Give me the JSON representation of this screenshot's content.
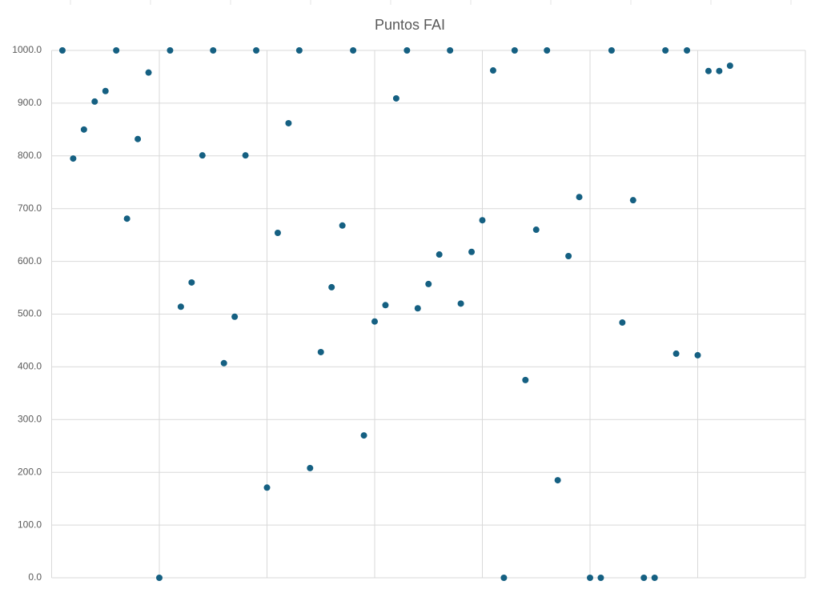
{
  "chart_data": {
    "type": "scatter",
    "title": "Puntos FAI",
    "x": [
      1,
      2,
      3,
      4,
      5,
      6,
      7,
      8,
      9,
      10,
      11,
      12,
      13,
      14,
      15,
      16,
      17,
      18,
      19,
      20,
      21,
      22,
      23,
      24,
      25,
      26,
      27,
      28,
      29,
      30,
      31,
      32,
      33,
      34,
      35,
      36,
      37,
      38,
      39,
      40,
      41,
      42,
      43,
      44,
      45,
      46,
      47,
      48,
      49,
      50,
      51,
      52,
      53,
      54,
      55,
      56,
      57,
      58,
      59,
      60,
      61,
      62,
      63
    ],
    "values": [
      1000,
      795,
      850,
      903,
      923,
      1000,
      681,
      832,
      958,
      0,
      1000,
      514,
      560,
      801,
      1000,
      407,
      495,
      801,
      1000,
      171,
      654,
      862,
      1000,
      208,
      428,
      551,
      668,
      1000,
      270,
      486,
      517,
      909,
      1000,
      511,
      557,
      613,
      1000,
      520,
      618,
      678,
      962,
      0,
      1000,
      375,
      660,
      1000,
      185,
      610,
      722,
      0,
      0,
      1000,
      484,
      716,
      0,
      0,
      1000,
      425,
      1000,
      422,
      961,
      961,
      971
    ],
    "color": "#156082",
    "xlim": [
      0,
      70
    ],
    "xticks": [
      0,
      10,
      20,
      30,
      40,
      50,
      60,
      70
    ],
    "ylim": [
      0,
      1000
    ],
    "yticks": [
      {
        "value": 0,
        "label": "0.0"
      },
      {
        "value": 100,
        "label": "100.0"
      },
      {
        "value": 200,
        "label": "200.0"
      },
      {
        "value": 300,
        "label": "300.0"
      },
      {
        "value": 400,
        "label": "400.0"
      },
      {
        "value": 500,
        "label": "500.0"
      },
      {
        "value": 600,
        "label": "600.0"
      },
      {
        "value": 700,
        "label": "700.0"
      },
      {
        "value": 800,
        "label": "800.0"
      },
      {
        "value": 900,
        "label": "900.0"
      },
      {
        "value": 1000,
        "label": "1000.0"
      }
    ],
    "grid": true
  }
}
